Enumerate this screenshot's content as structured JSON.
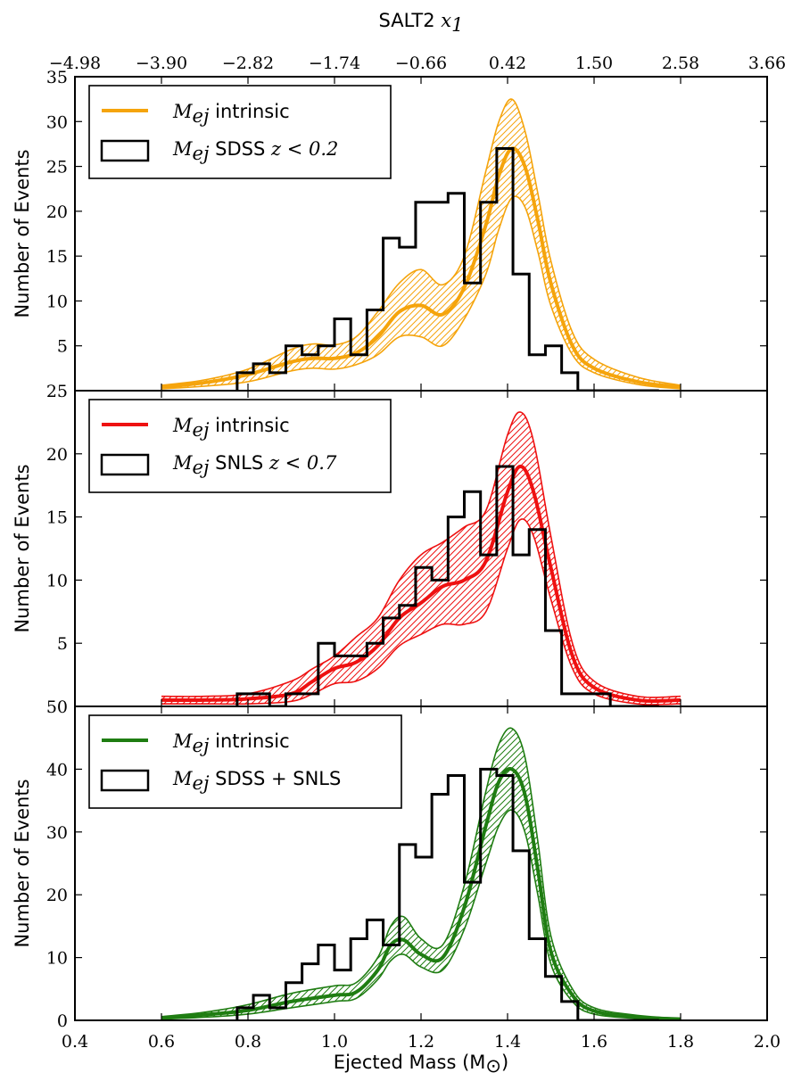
{
  "chart_data": {
    "type": "line",
    "top_axis": {
      "label_text": "SALT2",
      "label_math": "x",
      "label_sub": "1",
      "ticks": [
        "−4.98",
        "−3.90",
        "−2.82",
        "−1.74",
        "−0.66",
        "0.42",
        "1.50",
        "2.58",
        "3.66"
      ]
    },
    "x_axis": {
      "label": "Ejected Mass (M",
      "label_sym": "⊙",
      "label_end": ")",
      "range": [
        0.4,
        2.0
      ],
      "ticks": [
        0.4,
        0.6,
        0.8,
        1.0,
        1.2,
        1.4,
        1.6,
        1.8,
        2.0
      ],
      "tick_labels": [
        "0.4",
        "0.6",
        "0.8",
        "1.0",
        "1.2",
        "1.4",
        "1.6",
        "1.8",
        "2.0"
      ]
    },
    "panels": [
      {
        "ylabel": "Number of Events",
        "ylim": [
          0,
          35
        ],
        "yticks": [
          5,
          10,
          15,
          20,
          25,
          30,
          35
        ],
        "color": "#f5a40c",
        "legend": [
          {
            "math": "M",
            "sub": "ej",
            "text": "intrinsic"
          },
          {
            "math": "M",
            "sub": "ej",
            "text": "SDSS",
            "math2": "z < 0.2"
          }
        ],
        "hist": {
          "edges": [
            0.775,
            0.8125,
            0.85,
            0.8875,
            0.925,
            0.9625,
            1.0,
            1.0375,
            1.075,
            1.1125,
            1.15,
            1.1875,
            1.225,
            1.2625,
            1.3,
            1.3375,
            1.375,
            1.4125,
            1.45,
            1.4875,
            1.525,
            1.5625,
            1.6,
            1.6375,
            1.675,
            1.7125,
            1.75
          ],
          "counts": [
            2,
            3,
            2,
            5,
            4,
            5,
            8,
            4,
            9,
            17,
            16,
            21,
            21,
            22,
            12,
            21,
            27,
            13,
            4,
            5,
            2,
            0,
            0,
            0,
            0,
            0
          ]
        },
        "intrinsic": {
          "x": [
            0.6,
            0.7,
            0.8,
            0.9,
            0.95,
            1.0,
            1.05,
            1.1,
            1.15,
            1.2,
            1.25,
            1.3,
            1.35,
            1.38,
            1.41,
            1.44,
            1.47,
            1.5,
            1.55,
            1.6,
            1.7,
            1.8
          ],
          "y": [
            0.4,
            0.9,
            1.8,
            3.2,
            3.6,
            3.6,
            4.2,
            6.0,
            8.8,
            9.5,
            8.5,
            11.5,
            18.5,
            24.0,
            27.0,
            25.0,
            19.0,
            12.0,
            5.0,
            2.5,
            1.0,
            0.4
          ],
          "lower": [
            0.2,
            0.5,
            1.0,
            2.2,
            2.5,
            2.4,
            2.9,
            4.0,
            6.0,
            6.0,
            5.0,
            8.0,
            13.0,
            18.0,
            21.5,
            20.5,
            15.5,
            9.5,
            4.0,
            2.0,
            0.7,
            0.2
          ],
          "upper": [
            0.6,
            1.2,
            2.4,
            4.6,
            5.2,
            5.1,
            6.0,
            8.8,
            12.0,
            13.5,
            11.8,
            15.0,
            24.5,
            30.0,
            32.5,
            29.0,
            22.0,
            14.5,
            6.5,
            3.5,
            1.5,
            0.6
          ]
        }
      },
      {
        "ylabel": "Number of Events",
        "ylim": [
          0,
          25
        ],
        "yticks": [
          5,
          10,
          15,
          20,
          25
        ],
        "color": "#ee1111",
        "legend": [
          {
            "math": "M",
            "sub": "ej",
            "text": "intrinsic"
          },
          {
            "math": "M",
            "sub": "ej",
            "text": "SNLS",
            "math2": "z < 0.7"
          }
        ],
        "hist": {
          "edges": [
            0.775,
            0.8125,
            0.85,
            0.8875,
            0.925,
            0.9625,
            1.0,
            1.0375,
            1.075,
            1.1125,
            1.15,
            1.1875,
            1.225,
            1.2625,
            1.3,
            1.3375,
            1.375,
            1.4125,
            1.45,
            1.4875,
            1.525,
            1.5625,
            1.6,
            1.6375,
            1.675,
            1.7125,
            1.75
          ],
          "counts": [
            1,
            1,
            0,
            1,
            1,
            5,
            4,
            4,
            5,
            7,
            8,
            11,
            10,
            15,
            17,
            12,
            19,
            12,
            14,
            6,
            1,
            1,
            1,
            0,
            0,
            0
          ]
        },
        "intrinsic": {
          "x": [
            0.6,
            0.7,
            0.8,
            0.9,
            0.95,
            1.0,
            1.05,
            1.1,
            1.15,
            1.2,
            1.25,
            1.3,
            1.35,
            1.4,
            1.43,
            1.46,
            1.5,
            1.55,
            1.6,
            1.7,
            1.8
          ],
          "y": [
            0.5,
            0.5,
            0.6,
            1.0,
            2.0,
            3.0,
            3.5,
            4.8,
            7.0,
            8.2,
            9.5,
            10.0,
            11.5,
            17.0,
            19.0,
            17.0,
            11.0,
            4.0,
            1.5,
            0.5,
            0.5
          ],
          "lower": [
            0.2,
            0.2,
            0.2,
            0.4,
            1.0,
            1.8,
            2.0,
            3.0,
            4.8,
            5.7,
            6.5,
            6.5,
            7.5,
            12.5,
            14.8,
            13.5,
            8.5,
            3.0,
            1.0,
            0.2,
            0.2
          ],
          "upper": [
            0.8,
            0.8,
            1.0,
            2.0,
            3.0,
            4.0,
            5.5,
            7.0,
            10.0,
            12.0,
            13.0,
            14.2,
            15.5,
            21.5,
            23.3,
            21.0,
            13.5,
            5.0,
            2.0,
            0.8,
            0.8
          ]
        }
      },
      {
        "ylabel": "Number of Events",
        "ylim": [
          0,
          50
        ],
        "yticks": [
          0,
          10,
          20,
          30,
          40,
          50
        ],
        "color": "#1f7d12",
        "legend": [
          {
            "math": "M",
            "sub": "ej",
            "text": "intrinsic"
          },
          {
            "math": "M",
            "sub": "ej",
            "text": "SDSS + SNLS"
          }
        ],
        "hist": {
          "edges": [
            0.775,
            0.8125,
            0.85,
            0.8875,
            0.925,
            0.9625,
            1.0,
            1.0375,
            1.075,
            1.1125,
            1.15,
            1.1875,
            1.225,
            1.2625,
            1.3,
            1.3375,
            1.375,
            1.4125,
            1.45,
            1.4875,
            1.525,
            1.5625,
            1.6,
            1.6375,
            1.675,
            1.7125,
            1.75
          ],
          "counts": [
            2,
            4,
            2,
            6,
            9,
            12,
            8,
            13,
            16,
            12,
            28,
            26,
            36,
            39,
            22,
            40,
            39,
            27,
            13,
            7,
            3,
            0,
            0,
            0,
            0,
            0
          ]
        },
        "intrinsic": {
          "x": [
            0.6,
            0.7,
            0.8,
            0.9,
            1.0,
            1.05,
            1.1,
            1.13,
            1.16,
            1.2,
            1.25,
            1.3,
            1.35,
            1.38,
            1.41,
            1.44,
            1.47,
            1.5,
            1.55,
            1.6,
            1.7,
            1.8
          ],
          "y": [
            0.4,
            0.9,
            1.6,
            3.0,
            4.0,
            4.5,
            8.0,
            12.0,
            12.8,
            10.5,
            10.0,
            18.0,
            31.0,
            38.0,
            40.0,
            36.0,
            24.0,
            11.0,
            4.0,
            1.5,
            0.5,
            0.2
          ],
          "lower": [
            0.2,
            0.5,
            1.0,
            2.0,
            3.0,
            3.5,
            6.5,
            9.5,
            10.5,
            8.5,
            8.0,
            14.5,
            25.0,
            31.0,
            33.5,
            30.0,
            20.0,
            9.0,
            3.0,
            1.0,
            0.3,
            0.1
          ],
          "upper": [
            0.6,
            1.3,
            2.5,
            4.3,
            5.5,
            6.0,
            10.0,
            15.0,
            16.5,
            13.0,
            12.0,
            21.5,
            36.5,
            44.0,
            46.5,
            42.0,
            28.5,
            13.5,
            5.0,
            2.0,
            0.8,
            0.3
          ]
        }
      }
    ]
  }
}
